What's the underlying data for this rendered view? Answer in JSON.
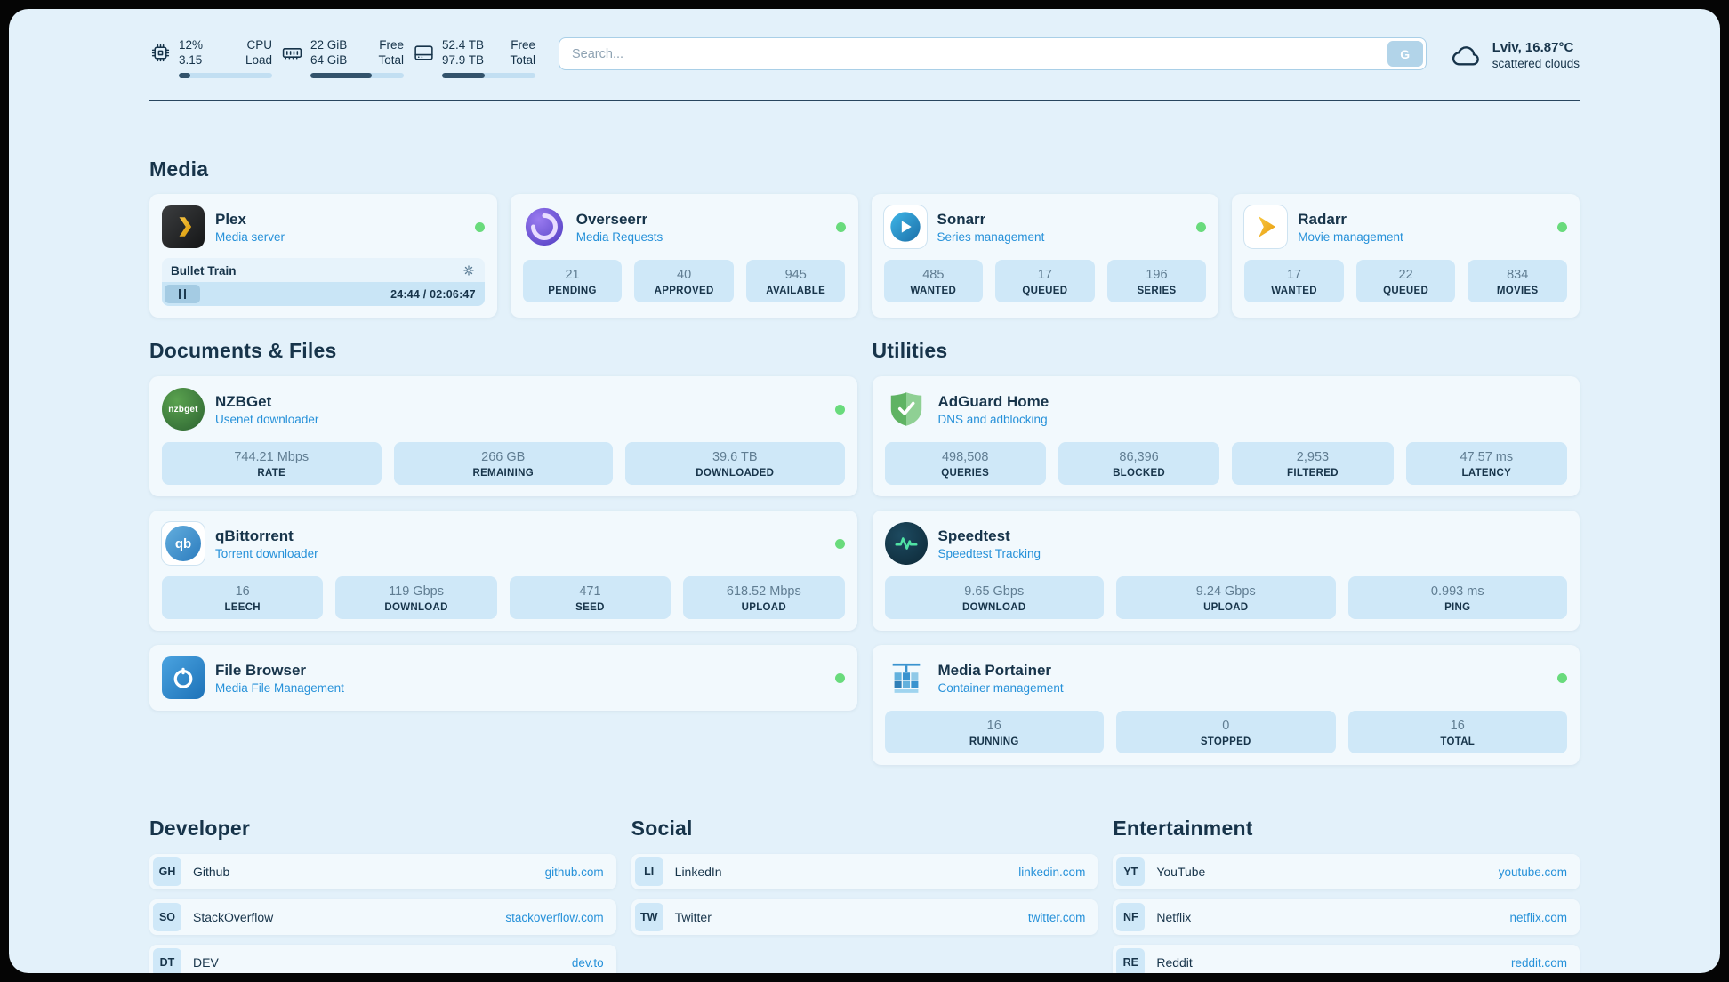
{
  "colors": {
    "page_background": "#e3f1fa",
    "card_background": "#f1f9fe",
    "stat_box_background": "#cfe8f8",
    "accent_blue": "#2691d9",
    "text_dark": "#17344a",
    "status_online_green": "#69db7c",
    "progress_fill": "#33536b"
  },
  "header": {
    "cpu": {
      "value1": "12%",
      "label1": "CPU",
      "value2": "3.15",
      "label2": "Load",
      "progress_pct": 12
    },
    "ram": {
      "value1": "22 GiB",
      "label1": "Free",
      "value2": "64 GiB",
      "label2": "Total",
      "progress_pct": 66
    },
    "disk": {
      "value1": "52.4 TB",
      "label1": "Free",
      "value2": "97.9 TB",
      "label2": "Total",
      "progress_pct": 46
    },
    "search": {
      "placeholder": "Search...",
      "button_label": "G"
    },
    "weather": {
      "location": "Lviv, 16.87°C",
      "condition": "scattered clouds"
    }
  },
  "sections": {
    "media": {
      "title": "Media",
      "plex": {
        "name": "Plex",
        "subtitle": "Media server",
        "now_playing": "Bullet Train",
        "time": "24:44 / 02:06:47"
      },
      "overseerr": {
        "name": "Overseerr",
        "subtitle": "Media Requests",
        "stats": [
          {
            "value": "21",
            "label": "PENDING"
          },
          {
            "value": "40",
            "label": "APPROVED"
          },
          {
            "value": "945",
            "label": "AVAILABLE"
          }
        ]
      },
      "sonarr": {
        "name": "Sonarr",
        "subtitle": "Series management",
        "stats": [
          {
            "value": "485",
            "label": "WANTED"
          },
          {
            "value": "17",
            "label": "QUEUED"
          },
          {
            "value": "196",
            "label": "SERIES"
          }
        ]
      },
      "radarr": {
        "name": "Radarr",
        "subtitle": "Movie management",
        "stats": [
          {
            "value": "17",
            "label": "WANTED"
          },
          {
            "value": "22",
            "label": "QUEUED"
          },
          {
            "value": "834",
            "label": "MOVIES"
          }
        ]
      }
    },
    "documents": {
      "title": "Documents & Files",
      "nzbget": {
        "name": "NZBGet",
        "subtitle": "Usenet downloader",
        "icon_text": "nzbget",
        "stats": [
          {
            "value": "744.21 Mbps",
            "label": "RATE"
          },
          {
            "value": "266 GB",
            "label": "REMAINING"
          },
          {
            "value": "39.6 TB",
            "label": "DOWNLOADED"
          }
        ]
      },
      "qbittorrent": {
        "name": "qBittorrent",
        "subtitle": "Torrent downloader",
        "icon_text": "qb",
        "stats": [
          {
            "value": "16",
            "label": "LEECH"
          },
          {
            "value": "119 Gbps",
            "label": "DOWNLOAD"
          },
          {
            "value": "471",
            "label": "SEED"
          },
          {
            "value": "618.52 Mbps",
            "label": "UPLOAD"
          }
        ]
      },
      "filebrowser": {
        "name": "File Browser",
        "subtitle": "Media File Management"
      }
    },
    "utilities": {
      "title": "Utilities",
      "adguard": {
        "name": "AdGuard Home",
        "subtitle": "DNS and adblocking",
        "stats": [
          {
            "value": "498,508",
            "label": "QUERIES"
          },
          {
            "value": "86,396",
            "label": "BLOCKED"
          },
          {
            "value": "2,953",
            "label": "FILTERED"
          },
          {
            "value": "47.57 ms",
            "label": "LATENCY"
          }
        ]
      },
      "speedtest": {
        "name": "Speedtest",
        "subtitle": "Speedtest Tracking",
        "stats": [
          {
            "value": "9.65 Gbps",
            "label": "DOWNLOAD"
          },
          {
            "value": "9.24 Gbps",
            "label": "UPLOAD"
          },
          {
            "value": "0.993 ms",
            "label": "PING"
          }
        ]
      },
      "portainer": {
        "name": "Media Portainer",
        "subtitle": "Container management",
        "stats": [
          {
            "value": "16",
            "label": "RUNNING"
          },
          {
            "value": "0",
            "label": "STOPPED"
          },
          {
            "value": "16",
            "label": "TOTAL"
          }
        ]
      }
    }
  },
  "bookmarks": {
    "developer": {
      "title": "Developer",
      "items": [
        {
          "abbr": "GH",
          "name": "Github",
          "url": "github.com"
        },
        {
          "abbr": "SO",
          "name": "StackOverflow",
          "url": "stackoverflow.com"
        },
        {
          "abbr": "DT",
          "name": "DEV",
          "url": "dev.to"
        }
      ]
    },
    "social": {
      "title": "Social",
      "items": [
        {
          "abbr": "LI",
          "name": "LinkedIn",
          "url": "linkedin.com"
        },
        {
          "abbr": "TW",
          "name": "Twitter",
          "url": "twitter.com"
        }
      ]
    },
    "entertainment": {
      "title": "Entertainment",
      "items": [
        {
          "abbr": "YT",
          "name": "YouTube",
          "url": "youtube.com"
        },
        {
          "abbr": "NF",
          "name": "Netflix",
          "url": "netflix.com"
        },
        {
          "abbr": "RE",
          "name": "Reddit",
          "url": "reddit.com"
        }
      ]
    }
  }
}
